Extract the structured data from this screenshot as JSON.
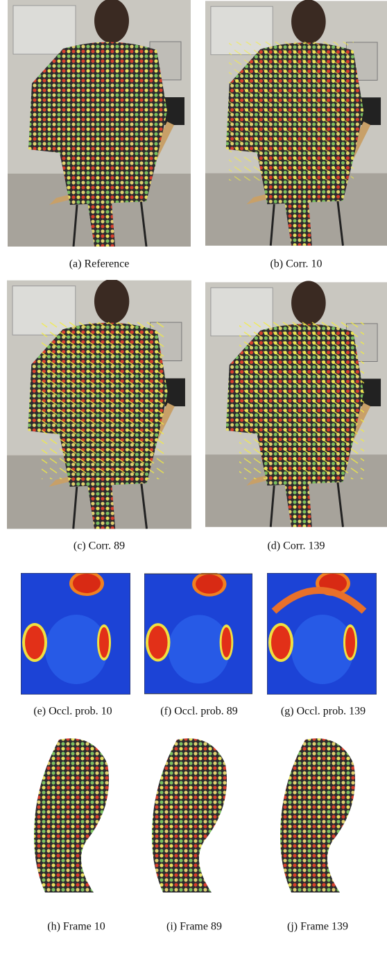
{
  "figure": {
    "panels": [
      {
        "caption": "(a) Reference"
      },
      {
        "caption": "(b) Corr. 10"
      },
      {
        "caption": "(c) Corr. 89"
      },
      {
        "caption": "(d) Corr. 139"
      },
      {
        "caption": "(e) Occl. prob. 10"
      },
      {
        "caption": "(f) Occl. prob. 89"
      },
      {
        "caption": "(g) Occl. prob. 139"
      },
      {
        "caption": "(h) Frame 10"
      },
      {
        "caption": "(i) Frame 89"
      },
      {
        "caption": "(j) Frame 139"
      }
    ]
  }
}
